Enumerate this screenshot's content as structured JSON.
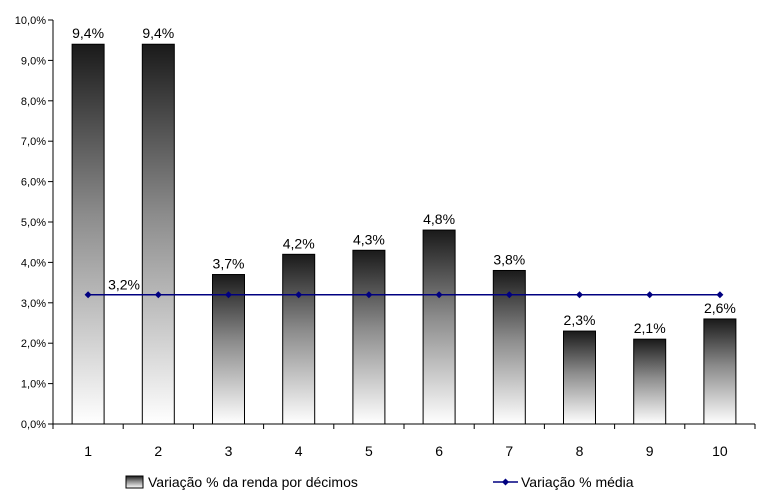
{
  "chart_data": {
    "type": "bar",
    "categories": [
      "1",
      "2",
      "3",
      "4",
      "5",
      "6",
      "7",
      "8",
      "9",
      "10"
    ],
    "series": [
      {
        "name": "Variação % da renda por décimos",
        "kind": "bar",
        "values": [
          9.4,
          9.4,
          3.7,
          4.2,
          4.3,
          4.8,
          3.8,
          2.3,
          2.1,
          2.6
        ],
        "labels": [
          "9,4%",
          "9,4%",
          "3,7%",
          "4,2%",
          "4,3%",
          "4,8%",
          "3,8%",
          "2,3%",
          "2,1%",
          "2,6%"
        ]
      },
      {
        "name": "Variação % média",
        "kind": "line",
        "values": [
          3.2,
          3.2,
          3.2,
          3.2,
          3.2,
          3.2,
          3.2,
          3.2,
          3.2,
          3.2
        ],
        "label": "3,2%",
        "color": "#000080"
      }
    ],
    "yticks": [
      "0,0%",
      "1,0%",
      "2,0%",
      "3,0%",
      "4,0%",
      "5,0%",
      "6,0%",
      "7,0%",
      "8,0%",
      "9,0%",
      "10,0%"
    ],
    "ylim": [
      0,
      10
    ],
    "title": "",
    "xlabel": "",
    "ylabel": "",
    "grid": false,
    "legend_position": "bottom"
  }
}
